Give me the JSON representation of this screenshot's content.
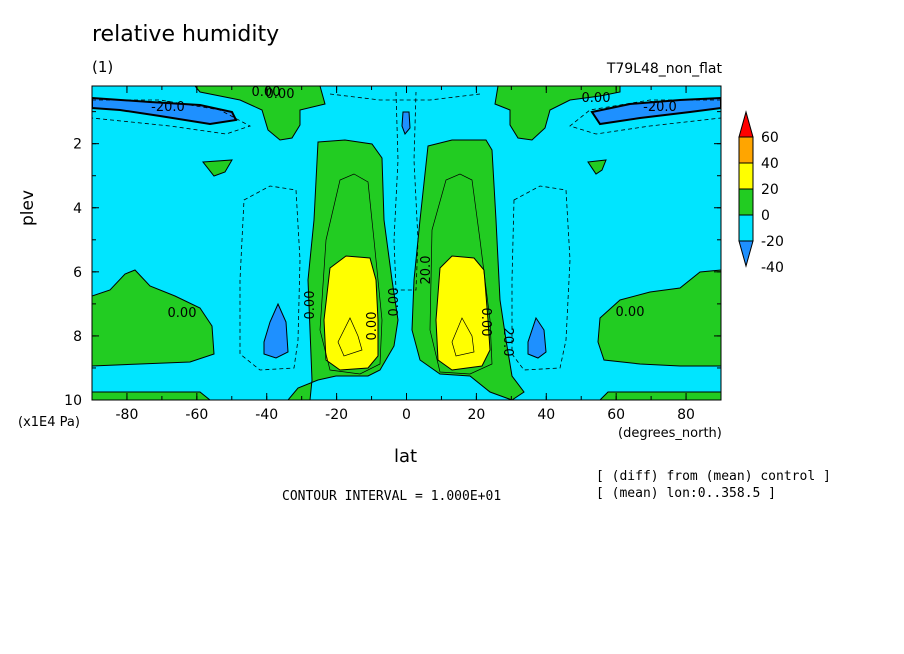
{
  "header": {
    "title": "relative humidity",
    "subtitle": "(1)",
    "experiment": "T79L48_non_flat"
  },
  "notes": {
    "contour_interval": "CONTOUR INTERVAL = 1.000E+01",
    "diff": "[ (diff) from (mean) control ]",
    "mean": "[ (mean) lon:0..358.5 ]"
  },
  "chart_data": {
    "type": "heatmap",
    "title": "relative humidity",
    "subtitle": "(1)",
    "xlabel": "lat",
    "xunit": "(degrees_north)",
    "ylabel": "plev",
    "yunit": "(x1E4 Pa)",
    "xlim": [
      -90,
      90
    ],
    "ylim": [
      10,
      0.2
    ],
    "x_ticks": [
      "-80",
      "-60",
      "-40",
      "-20",
      "0",
      "20",
      "40",
      "60",
      "80"
    ],
    "y_ticks": [
      "2",
      "4",
      "6",
      "8",
      "10"
    ],
    "colorbar": {
      "labels": [
        "60",
        "40",
        "20",
        "0",
        "-20",
        "-40"
      ],
      "levels": [
        -40,
        -20,
        0,
        20,
        40,
        60
      ],
      "colors": [
        "#1e90ff",
        "#00e5ff",
        "#22cc22",
        "#ffff00",
        "#ffa500",
        "#ff0000"
      ]
    },
    "contour_labels": [
      "-20.0",
      "0.00",
      "0.00",
      "-20.0",
      "0.00",
      "0.00",
      "0.00",
      "20.0",
      "0.00",
      "0.00",
      "20.0",
      "0.00",
      "0.00"
    ],
    "regions": [
      {
        "name": "background",
        "range": "-20 to 0"
      },
      {
        "name": "upper-left-negative",
        "range": "< -20"
      },
      {
        "name": "upper-right-negative",
        "range": "< -20"
      },
      {
        "name": "tropical-columns",
        "range": "0 to 20"
      },
      {
        "name": "tropical-cores",
        "range": "20 to 40"
      },
      {
        "name": "high-latitude-lower",
        "range": "0 to 20"
      }
    ]
  }
}
